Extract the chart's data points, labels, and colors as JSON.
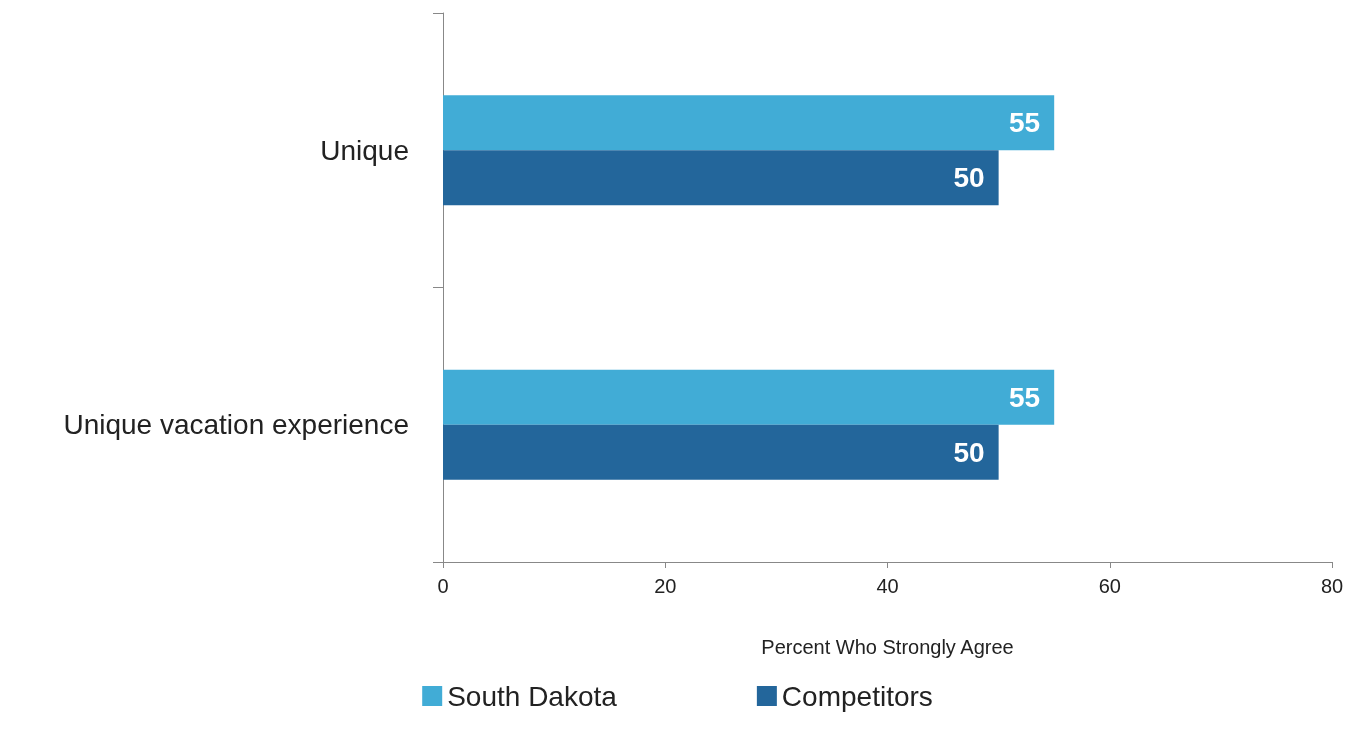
{
  "chart_data": {
    "type": "bar",
    "orientation": "horizontal",
    "xlabel": "Percent Who Strongly Agree",
    "categories": [
      "Unique",
      "Unique vacation experience"
    ],
    "series": [
      {
        "name": "South Dakota",
        "color": "#41acd6",
        "values": [
          55,
          55
        ]
      },
      {
        "name": "Competitors",
        "color": "#23669b",
        "values": [
          50,
          50
        ]
      }
    ],
    "xlim": [
      0,
      80
    ],
    "xticks": [
      0,
      20,
      40,
      60,
      80
    ],
    "grid": false,
    "legend": "bottom",
    "data_labels": true
  }
}
